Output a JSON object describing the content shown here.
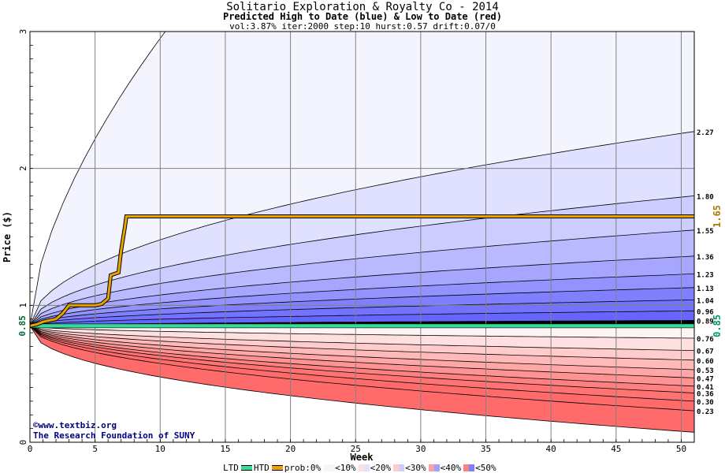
{
  "header": {
    "title": "Solitario Exploration & Royalty Co  - 2014",
    "subtitle": "Predicted High to Date (blue) &  Low to Date (red)",
    "params": "vol:3.87% iter:2000 step:10 hurst:0.57 drift:0.07/0"
  },
  "credit": {
    "line1": "©www.textbiz.org",
    "line2": "The Research Foundation of SUNY"
  },
  "legend": {
    "ltd": "LTD",
    "htd": "HTD",
    "prob": "prob:0%",
    "b1": "<10%",
    "b2": "<20%",
    "b3": "<30%",
    "b4": "<40%",
    "b5": "<50%"
  },
  "chart_data": {
    "type": "area",
    "xlabel": "Week",
    "ylabel": "Price ($)",
    "xlim": [
      0,
      51
    ],
    "ylim": [
      0,
      3
    ],
    "x_ticks": [
      0,
      5,
      10,
      15,
      20,
      25,
      30,
      35,
      40,
      45,
      50
    ],
    "y_ticks": [
      0,
      1,
      2,
      3
    ],
    "grid": true,
    "start_price": 0.85,
    "start_label": "0.85",
    "htd_value": 1.65,
    "htd_label": "1.65",
    "ltd_value": 0.85,
    "ltd_label": "0.85",
    "high_percentile_endpoints": [
      {
        "label": "2.27",
        "value": 2.27
      },
      {
        "label": "1.80",
        "value": 1.8
      },
      {
        "label": "1.55",
        "value": 1.55
      },
      {
        "label": "1.36",
        "value": 1.36
      },
      {
        "label": "1.23",
        "value": 1.23
      },
      {
        "label": "1.13",
        "value": 1.13
      },
      {
        "label": "1.04",
        "value": 1.04
      },
      {
        "label": "0.96",
        "value": 0.96
      },
      {
        "label": "0.89",
        "value": 0.89
      }
    ],
    "low_percentile_endpoints": [
      {
        "label": "0.76",
        "value": 0.76
      },
      {
        "label": "0.67",
        "value": 0.67
      },
      {
        "label": "0.60",
        "value": 0.6
      },
      {
        "label": "0.53",
        "value": 0.53
      },
      {
        "label": "0.47",
        "value": 0.47
      },
      {
        "label": "0.41",
        "value": 0.41
      },
      {
        "label": "0.36",
        "value": 0.36
      },
      {
        "label": "0.30",
        "value": 0.3
      },
      {
        "label": "0.23",
        "value": 0.23
      }
    ],
    "outer_high_week10_value": 2.95,
    "outer_low_week50_value": 0.08,
    "htd_path": [
      [
        0,
        0.85
      ],
      [
        0.5,
        0.86
      ],
      [
        1,
        0.88
      ],
      [
        1.5,
        0.89
      ],
      [
        2,
        0.9
      ],
      [
        2.5,
        0.94
      ],
      [
        3,
        1.0
      ],
      [
        3.5,
        1.0
      ],
      [
        4,
        1.0
      ],
      [
        5,
        1.0
      ],
      [
        5.5,
        1.01
      ],
      [
        6,
        1.05
      ],
      [
        6.2,
        1.22
      ],
      [
        6.8,
        1.24
      ],
      [
        7,
        1.4
      ],
      [
        7.3,
        1.58
      ],
      [
        7.4,
        1.65
      ],
      [
        51,
        1.65
      ]
    ],
    "colors": {
      "htd": "#e8a300",
      "ltd": "#33dd99",
      "blue_bands": [
        "#f4f4ff",
        "#e0e0ff",
        "#ccccff",
        "#b9b9ff",
        "#a6a6ff",
        "#9393ff",
        "#8080ff",
        "#7373ff",
        "#6666ff"
      ],
      "red_bands": [
        "#fff4f4",
        "#ffe0e0",
        "#ffcccc",
        "#ffb9b9",
        "#ffa6a6",
        "#ff9393",
        "#ff8080",
        "#ff7373",
        "#ff6b6b"
      ]
    }
  }
}
